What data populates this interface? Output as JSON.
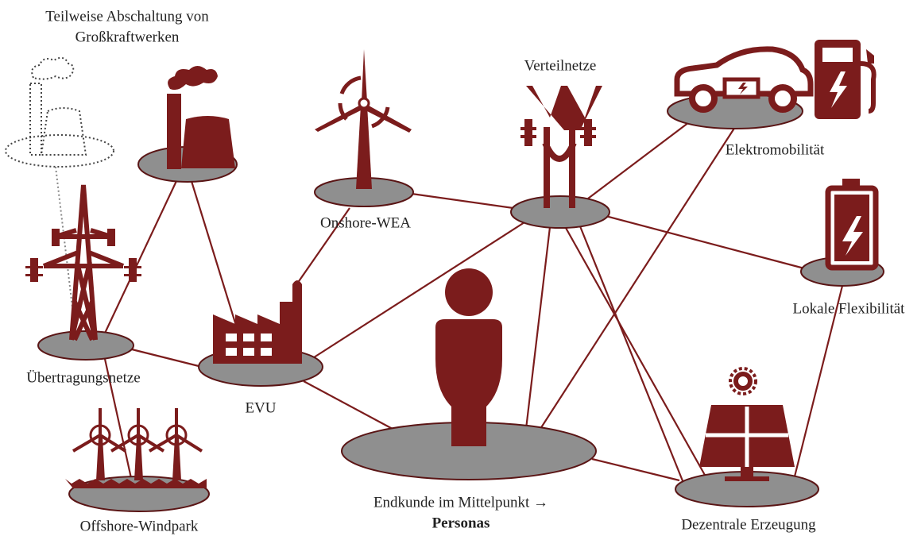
{
  "nodes": [
    {
      "label": [
        "Teilweise Abschaltung von",
        "Großkraftwerken"
      ]
    },
    {
      "label": [
        "Onshore-WEA"
      ]
    },
    {
      "label": [
        "Verteilnetze"
      ]
    },
    {
      "label": [
        "Elektromobilität"
      ]
    },
    {
      "label": [
        "Lokale Flexibilität"
      ]
    },
    {
      "label": [
        "Übertragungsnetze"
      ]
    },
    {
      "label": [
        "EVU"
      ]
    },
    {
      "label": [
        "Endkunde im Mittelpunkt →",
        "Personas"
      ]
    },
    {
      "label": [
        "Dezentrale Erzeugung"
      ]
    },
    {
      "label": [
        "Offshore-Windpark"
      ]
    }
  ]
}
